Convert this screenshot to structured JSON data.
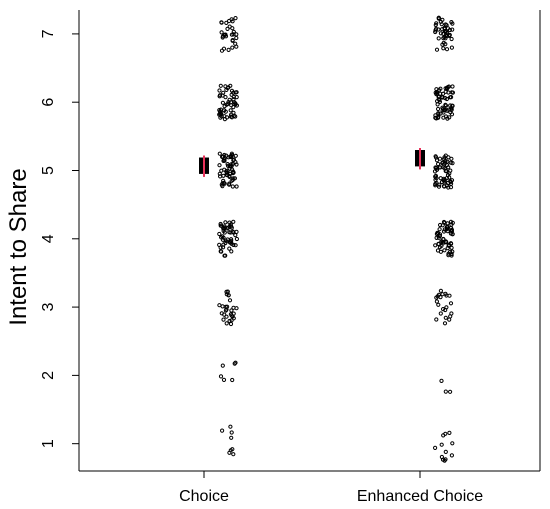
{
  "chart_data": {
    "type": "scatter",
    "title": "",
    "xlabel": "",
    "ylabel": "Intent to Share",
    "ylim": [
      0.6,
      7.35
    ],
    "yticks": [
      1,
      2,
      3,
      4,
      5,
      6,
      7
    ],
    "categories": [
      "Choice",
      "Enhanced Choice"
    ],
    "grid": false,
    "legend": "none",
    "point_color": "#000000",
    "mean_color": "#000000",
    "ci_color": "#e8325a",
    "groups": [
      {
        "name": "Choice",
        "approx_counts": {
          "1": 8,
          "2": 6,
          "3": 28,
          "4": 50,
          "5": 60,
          "6": 55,
          "7": 30
        },
        "mean": 5.07,
        "ci": [
          4.95,
          5.19
        ]
      },
      {
        "name": "Enhanced Choice",
        "approx_counts": {
          "1": 12,
          "2": 3,
          "3": 22,
          "4": 60,
          "5": 62,
          "6": 65,
          "7": 45
        },
        "mean": 5.18,
        "ci": [
          5.06,
          5.3
        ]
      }
    ]
  }
}
